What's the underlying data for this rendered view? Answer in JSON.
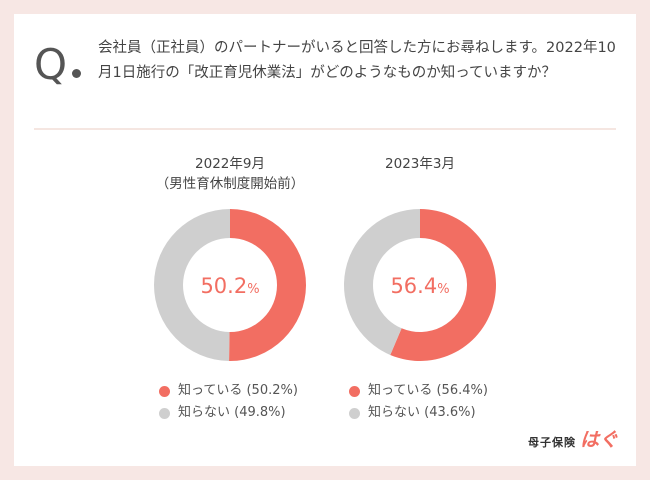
{
  "question": {
    "marker": "Q",
    "text": "会社員（正社員）のパートナーがいると回答した方にお尋ねします。2022年10月1日施行の「改正育児休業法」がどのようなものか知っていますか？"
  },
  "brand": {
    "name": "母子保険",
    "logo": "はぐ"
  },
  "colors": {
    "known": "#f26e62",
    "unknown": "#cfcfcf",
    "center_text": "#f26e62"
  },
  "chart_data": [
    {
      "type": "pie",
      "title": "2022年9月\n（男性育休制度開始前）",
      "center_value": "50.2",
      "center_unit": "%",
      "series": [
        {
          "name": "知っている",
          "value": 50.2,
          "legend": "知っている (50.2%)"
        },
        {
          "name": "知らない",
          "value": 49.8,
          "legend": "知らない (49.8%)"
        }
      ]
    },
    {
      "type": "pie",
      "title": "2023年3月",
      "center_value": "56.4",
      "center_unit": "%",
      "series": [
        {
          "name": "知っている",
          "value": 56.4,
          "legend": "知っている (56.4%)"
        },
        {
          "name": "知らない",
          "value": 43.6,
          "legend": "知らない (43.6%)"
        }
      ]
    }
  ]
}
